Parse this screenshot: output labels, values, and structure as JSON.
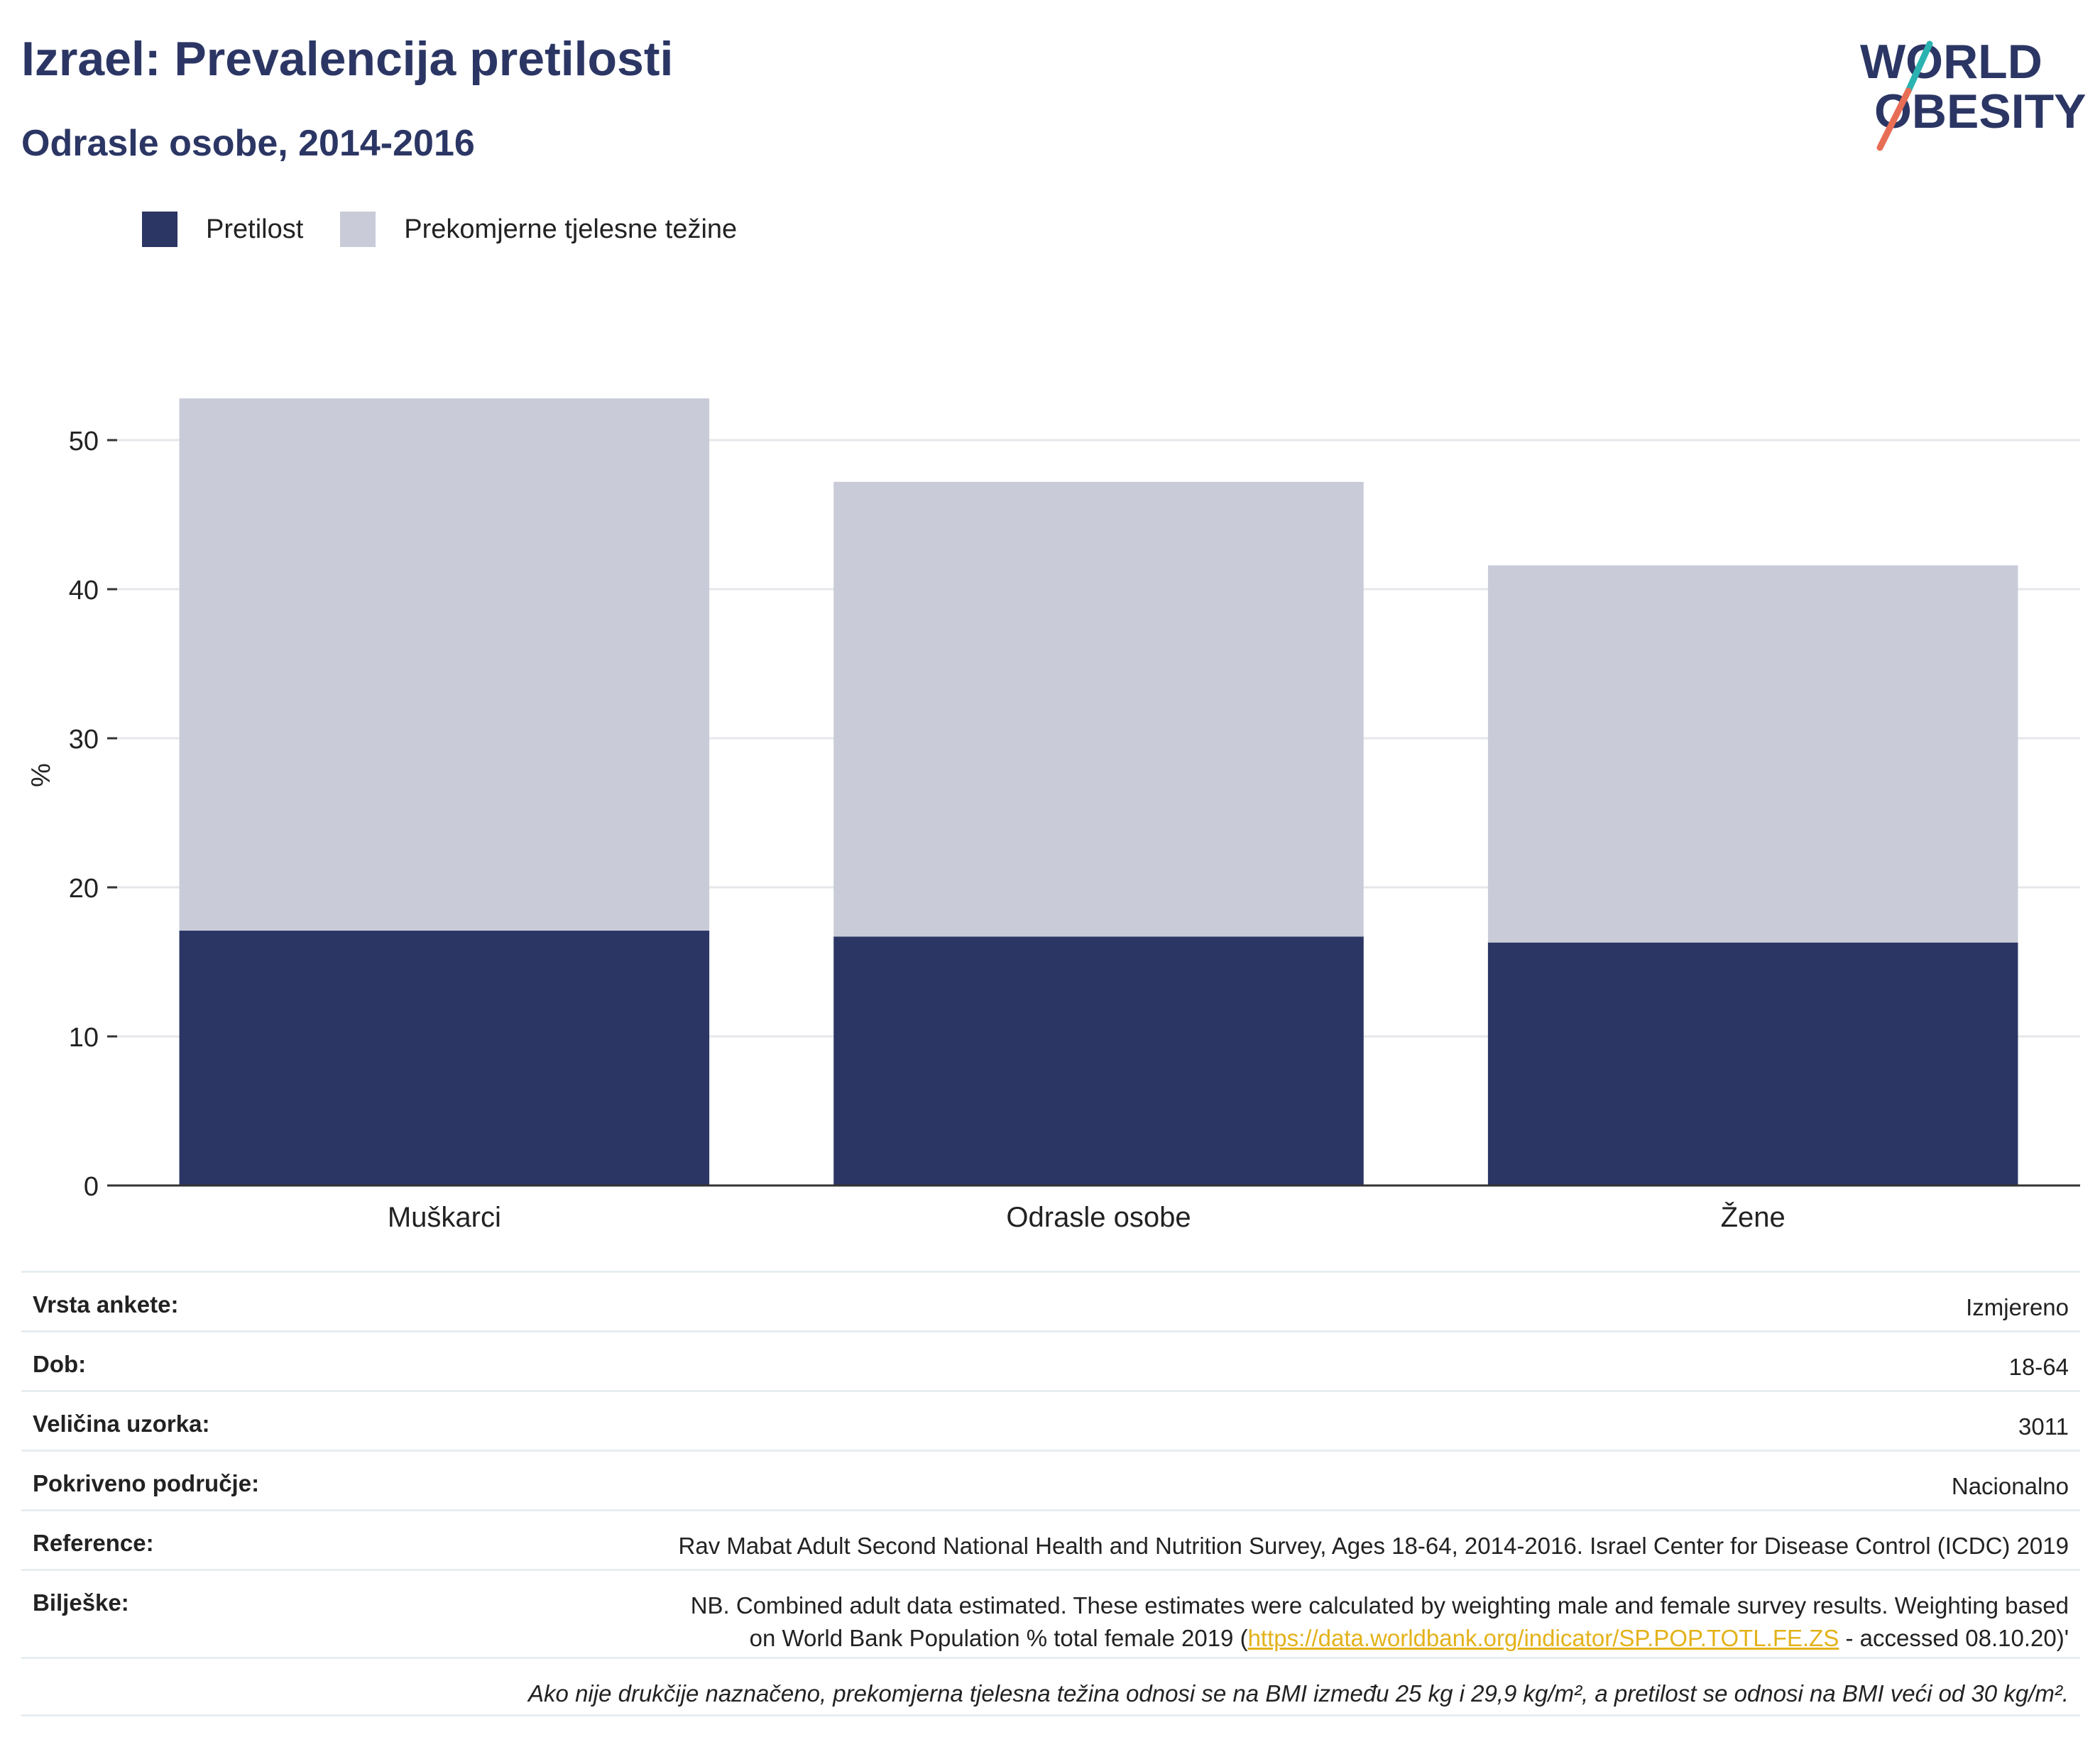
{
  "title": "Izrael: Prevalencija pretilosti",
  "subtitle": "Odrasle osobe, 2014-2016",
  "logo": {
    "line1": "WORLD",
    "line2": "OBESITY"
  },
  "chart_data": {
    "type": "bar",
    "stacked": true,
    "categories": [
      "Muškarci",
      "Odrasle osobe",
      "Žene"
    ],
    "series": [
      {
        "name": "Pretilost",
        "color": "#2b3664",
        "values": [
          17.1,
          16.7,
          16.3
        ]
      },
      {
        "name": "Prekomjerne tjelesne težine",
        "color": "#c9ccd8",
        "values": [
          35.7,
          30.5,
          25.3
        ]
      }
    ],
    "ylabel": "%",
    "ylim": [
      0,
      53
    ],
    "yticks": [
      0,
      10,
      20,
      30,
      40,
      50
    ],
    "grid": true,
    "legend_position": "top-left"
  },
  "info": {
    "rows": [
      {
        "key": "Vrsta ankete:",
        "value": "Izmjereno"
      },
      {
        "key": "Dob:",
        "value": "18-64"
      },
      {
        "key": "Veličina uzorka:",
        "value": "3011"
      },
      {
        "key": "Pokriveno područje:",
        "value": "Nacionalno"
      },
      {
        "key": "Reference:",
        "value": "Rav Mabat Adult Second National Health and Nutrition Survey, Ages 18-64, 2014-2016. Israel Center for Disease Control (ICDC) 2019"
      }
    ],
    "notes_key": "Bilješke:",
    "notes_line1": "NB. Combined adult data estimated. These estimates were calculated by weighting male and female survey results. Weighting based",
    "notes_line2_pre": "on World Bank Population % total female 2019 (",
    "notes_link": "https://data.worldbank.org/indicator/SP.POP.TOTL.FE.ZS",
    "notes_line2_post": " - accessed 08.10.20)'",
    "footnote": "Ako nije drukčije naznačeno, prekomjerna tjelesna težina odnosi se na BMI između 25 kg i 29,9 kg/m², a pretilost se odnosi na BMI veći od 30 kg/m²."
  }
}
